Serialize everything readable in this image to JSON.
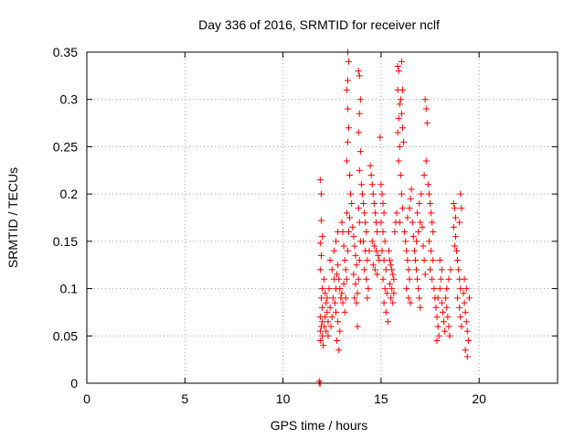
{
  "chart_data": {
    "type": "scatter",
    "title": "Day 336 of 2016, SRMTID for receiver nclf",
    "xlabel": "GPS time / hours",
    "ylabel": "SRMTID / TECUs",
    "xlim": [
      0,
      24
    ],
    "ylim": [
      0,
      0.35
    ],
    "x_ticks": [
      0,
      5,
      10,
      15,
      20
    ],
    "y_ticks": [
      0,
      0.05,
      0.1,
      0.15,
      0.2,
      0.25,
      0.3,
      0.35
    ],
    "x_tick_labels": [
      "0",
      "5",
      "10",
      "15",
      "20"
    ],
    "y_tick_labels": [
      "0",
      "0.05",
      "0.1",
      "0.15",
      "0.2",
      "0.25",
      "0.3",
      "0.35"
    ],
    "grid": true,
    "marker": "plus",
    "color": "#ff0000",
    "series": [
      {
        "points": [
          [
            11.85,
            0.0
          ],
          [
            11.85,
            0.002
          ],
          [
            11.9,
            0.0
          ],
          [
            11.9,
            0.215
          ],
          [
            11.95,
            0.2
          ],
          [
            11.95,
            0.172
          ],
          [
            12.0,
            0.155
          ],
          [
            11.9,
            0.148
          ],
          [
            11.95,
            0.135
          ],
          [
            11.9,
            0.12
          ],
          [
            12.0,
            0.1
          ],
          [
            11.95,
            0.09
          ],
          [
            12.0,
            0.08
          ],
          [
            11.9,
            0.07
          ],
          [
            12.0,
            0.065
          ],
          [
            11.95,
            0.06
          ],
          [
            11.9,
            0.055
          ],
          [
            12.0,
            0.05
          ],
          [
            11.9,
            0.045
          ],
          [
            12.05,
            0.04
          ],
          [
            12.1,
            0.11
          ],
          [
            12.15,
            0.095
          ],
          [
            12.2,
            0.085
          ],
          [
            12.25,
            0.075
          ],
          [
            12.3,
            0.065
          ],
          [
            12.1,
            0.06
          ],
          [
            12.2,
            0.055
          ],
          [
            12.3,
            0.05
          ],
          [
            12.15,
            0.07
          ],
          [
            12.25,
            0.09
          ],
          [
            12.35,
            0.1
          ],
          [
            12.4,
            0.08
          ],
          [
            12.45,
            0.06
          ],
          [
            12.5,
            0.07
          ],
          [
            12.55,
            0.09
          ],
          [
            12.6,
            0.11
          ],
          [
            12.5,
            0.12
          ],
          [
            12.4,
            0.13
          ],
          [
            12.65,
            0.085
          ],
          [
            12.7,
            0.1
          ],
          [
            12.75,
            0.115
          ],
          [
            12.8,
            0.125
          ],
          [
            12.85,
            0.11
          ],
          [
            12.9,
            0.1
          ],
          [
            12.95,
            0.09
          ],
          [
            12.7,
            0.075
          ],
          [
            12.8,
            0.065
          ],
          [
            12.9,
            0.055
          ],
          [
            12.75,
            0.045
          ],
          [
            12.85,
            0.035
          ],
          [
            12.6,
            0.14
          ],
          [
            12.7,
            0.15
          ],
          [
            12.8,
            0.16
          ],
          [
            13.0,
            0.17
          ],
          [
            13.05,
            0.16
          ],
          [
            13.1,
            0.145
          ],
          [
            13.15,
            0.13
          ],
          [
            13.2,
            0.12
          ],
          [
            13.1,
            0.105
          ],
          [
            13.0,
            0.095
          ],
          [
            13.05,
            0.085
          ],
          [
            13.15,
            0.075
          ],
          [
            13.2,
            0.09
          ],
          [
            13.25,
            0.11
          ],
          [
            13.3,
            0.14
          ],
          [
            13.35,
            0.16
          ],
          [
            13.25,
            0.18
          ],
          [
            13.3,
            0.35
          ],
          [
            13.35,
            0.34
          ],
          [
            13.3,
            0.32
          ],
          [
            13.25,
            0.31
          ],
          [
            13.3,
            0.29
          ],
          [
            13.35,
            0.27
          ],
          [
            13.3,
            0.255
          ],
          [
            13.25,
            0.235
          ],
          [
            13.4,
            0.22
          ],
          [
            13.45,
            0.2
          ],
          [
            13.5,
            0.19
          ],
          [
            13.4,
            0.175
          ],
          [
            13.55,
            0.165
          ],
          [
            13.6,
            0.155
          ],
          [
            13.65,
            0.145
          ],
          [
            13.7,
            0.135
          ],
          [
            13.75,
            0.125
          ],
          [
            13.6,
            0.115
          ],
          [
            13.7,
            0.105
          ],
          [
            13.8,
            0.095
          ],
          [
            13.65,
            0.09
          ],
          [
            13.75,
            0.085
          ],
          [
            13.8,
            0.06
          ],
          [
            13.85,
            0.11
          ],
          [
            13.9,
            0.13
          ],
          [
            13.95,
            0.15
          ],
          [
            13.9,
            0.17
          ],
          [
            13.85,
            0.185
          ],
          [
            13.85,
            0.33
          ],
          [
            13.9,
            0.325
          ],
          [
            13.95,
            0.3
          ],
          [
            13.9,
            0.285
          ],
          [
            13.85,
            0.265
          ],
          [
            13.95,
            0.245
          ],
          [
            13.9,
            0.225
          ],
          [
            14.0,
            0.21
          ],
          [
            14.05,
            0.2
          ],
          [
            14.1,
            0.19
          ],
          [
            14.15,
            0.18
          ],
          [
            14.2,
            0.17
          ],
          [
            14.25,
            0.16
          ],
          [
            14.1,
            0.15
          ],
          [
            14.2,
            0.14
          ],
          [
            14.3,
            0.13
          ],
          [
            14.15,
            0.12
          ],
          [
            14.25,
            0.11
          ],
          [
            14.35,
            0.1
          ],
          [
            14.3,
            0.09
          ],
          [
            14.4,
            0.14
          ],
          [
            14.45,
            0.23
          ],
          [
            14.5,
            0.22
          ],
          [
            14.55,
            0.21
          ],
          [
            14.6,
            0.2
          ],
          [
            14.65,
            0.19
          ],
          [
            14.7,
            0.18
          ],
          [
            14.75,
            0.17
          ],
          [
            14.8,
            0.16
          ],
          [
            14.55,
            0.15
          ],
          [
            14.65,
            0.145
          ],
          [
            14.75,
            0.14
          ],
          [
            14.85,
            0.135
          ],
          [
            14.9,
            0.13
          ],
          [
            14.6,
            0.125
          ],
          [
            14.7,
            0.12
          ],
          [
            14.8,
            0.115
          ],
          [
            14.95,
            0.26
          ],
          [
            15.0,
            0.21
          ],
          [
            15.05,
            0.2
          ],
          [
            15.1,
            0.19
          ],
          [
            15.15,
            0.18
          ],
          [
            15.0,
            0.17
          ],
          [
            15.1,
            0.16
          ],
          [
            15.2,
            0.15
          ],
          [
            15.05,
            0.14
          ],
          [
            15.15,
            0.13
          ],
          [
            15.25,
            0.12
          ],
          [
            15.1,
            0.11
          ],
          [
            15.2,
            0.1
          ],
          [
            15.3,
            0.095
          ],
          [
            15.15,
            0.085
          ],
          [
            15.25,
            0.075
          ],
          [
            15.35,
            0.065
          ],
          [
            15.4,
            0.14
          ],
          [
            15.45,
            0.13
          ],
          [
            15.5,
            0.125
          ],
          [
            15.55,
            0.12
          ],
          [
            15.6,
            0.115
          ],
          [
            15.65,
            0.11
          ],
          [
            15.45,
            0.105
          ],
          [
            15.55,
            0.1
          ],
          [
            15.65,
            0.095
          ],
          [
            15.5,
            0.09
          ],
          [
            15.6,
            0.085
          ],
          [
            15.7,
            0.16
          ],
          [
            15.75,
            0.17
          ],
          [
            15.8,
            0.18
          ],
          [
            15.85,
            0.335
          ],
          [
            15.9,
            0.33
          ],
          [
            15.85,
            0.31
          ],
          [
            15.95,
            0.295
          ],
          [
            15.9,
            0.28
          ],
          [
            15.85,
            0.265
          ],
          [
            15.95,
            0.25
          ],
          [
            15.9,
            0.235
          ],
          [
            16.0,
            0.22
          ],
          [
            16.05,
            0.2
          ],
          [
            16.1,
            0.185
          ],
          [
            15.95,
            0.17
          ],
          [
            16.05,
            0.34
          ],
          [
            16.1,
            0.31
          ],
          [
            16.0,
            0.3
          ],
          [
            16.05,
            0.285
          ],
          [
            16.1,
            0.27
          ],
          [
            16.15,
            0.255
          ],
          [
            16.2,
            0.16
          ],
          [
            16.25,
            0.15
          ],
          [
            16.3,
            0.14
          ],
          [
            16.35,
            0.13
          ],
          [
            16.4,
            0.12
          ],
          [
            16.45,
            0.11
          ],
          [
            16.3,
            0.1
          ],
          [
            16.4,
            0.09
          ],
          [
            16.5,
            0.085
          ],
          [
            16.35,
            0.175
          ],
          [
            16.45,
            0.185
          ],
          [
            16.5,
            0.195
          ],
          [
            16.55,
            0.205
          ],
          [
            16.6,
            0.17
          ],
          [
            16.65,
            0.155
          ],
          [
            16.7,
            0.14
          ],
          [
            16.75,
            0.13
          ],
          [
            16.8,
            0.12
          ],
          [
            16.85,
            0.11
          ],
          [
            16.9,
            0.1
          ],
          [
            16.95,
            0.09
          ],
          [
            17.0,
            0.08
          ],
          [
            16.8,
            0.15
          ],
          [
            16.9,
            0.16
          ],
          [
            17.0,
            0.17
          ],
          [
            16.85,
            0.18
          ],
          [
            16.95,
            0.19
          ],
          [
            17.05,
            0.2
          ],
          [
            17.1,
            0.165
          ],
          [
            17.15,
            0.145
          ],
          [
            17.2,
            0.13
          ],
          [
            17.25,
            0.115
          ],
          [
            17.25,
            0.3
          ],
          [
            17.3,
            0.29
          ],
          [
            17.35,
            0.275
          ],
          [
            17.3,
            0.235
          ],
          [
            17.2,
            0.22
          ],
          [
            17.4,
            0.21
          ],
          [
            17.45,
            0.2
          ],
          [
            17.5,
            0.19
          ],
          [
            17.55,
            0.18
          ],
          [
            17.6,
            0.17
          ],
          [
            17.65,
            0.16
          ],
          [
            17.45,
            0.15
          ],
          [
            17.55,
            0.14
          ],
          [
            17.65,
            0.13
          ],
          [
            17.5,
            0.12
          ],
          [
            17.6,
            0.11
          ],
          [
            17.7,
            0.1
          ],
          [
            17.75,
            0.09
          ],
          [
            17.8,
            0.08
          ],
          [
            17.85,
            0.07
          ],
          [
            17.9,
            0.06
          ],
          [
            17.95,
            0.05
          ],
          [
            17.85,
            0.045
          ],
          [
            17.9,
            0.09
          ],
          [
            18.0,
            0.1
          ],
          [
            18.05,
            0.11
          ],
          [
            18.1,
            0.12
          ],
          [
            18.0,
            0.13
          ],
          [
            18.1,
            0.085
          ],
          [
            18.15,
            0.075
          ],
          [
            18.2,
            0.065
          ],
          [
            18.25,
            0.055
          ],
          [
            18.3,
            0.09
          ],
          [
            18.35,
            0.08
          ],
          [
            18.4,
            0.07
          ],
          [
            18.45,
            0.06
          ],
          [
            18.5,
            0.05
          ],
          [
            18.35,
            0.1
          ],
          [
            18.45,
            0.11
          ],
          [
            18.55,
            0.12
          ],
          [
            18.7,
            0.19
          ],
          [
            18.75,
            0.185
          ],
          [
            18.8,
            0.175
          ],
          [
            18.7,
            0.165
          ],
          [
            18.8,
            0.155
          ],
          [
            18.75,
            0.145
          ],
          [
            18.85,
            0.14
          ],
          [
            18.9,
            0.13
          ],
          [
            18.95,
            0.12
          ],
          [
            19.0,
            0.11
          ],
          [
            19.05,
            0.1
          ],
          [
            18.9,
            0.09
          ],
          [
            19.0,
            0.08
          ],
          [
            19.05,
            0.07
          ],
          [
            19.1,
            0.06
          ],
          [
            19.05,
            0.2
          ],
          [
            19.1,
            0.185
          ],
          [
            19.0,
            0.17
          ],
          [
            19.2,
            0.095
          ],
          [
            19.25,
            0.085
          ],
          [
            19.3,
            0.075
          ],
          [
            19.35,
            0.065
          ],
          [
            19.4,
            0.055
          ],
          [
            19.45,
            0.045
          ],
          [
            19.3,
            0.035
          ],
          [
            19.4,
            0.028
          ],
          [
            19.5,
            0.09
          ],
          [
            19.35,
            0.1
          ],
          [
            19.25,
            0.11
          ]
        ]
      }
    ]
  }
}
